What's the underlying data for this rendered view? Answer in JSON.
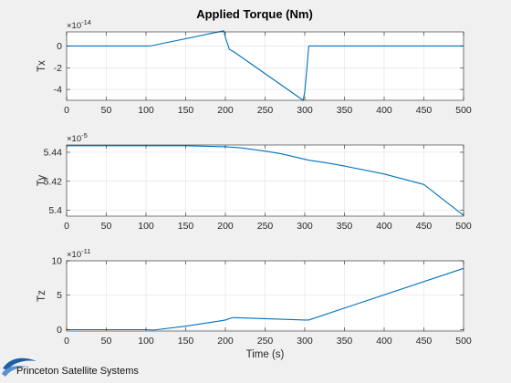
{
  "figure": {
    "title": "Applied Torque (Nm)",
    "footer_logo_text": "Princeton Satellite Systems"
  },
  "colors": {
    "line": "#0072bd",
    "axes": "#262626",
    "grid": "#e1e1e1",
    "plot_background": "#ffffff",
    "figure_background": "#f0f0f0",
    "logo_swoosh": "#1f5fa6"
  },
  "chart_data": [
    {
      "type": "line",
      "ylabel": "Tx",
      "xlabel": "",
      "exponent_base": "×10",
      "exponent_power": "-14",
      "xlim": [
        0,
        500
      ],
      "ylim": [
        -5,
        1.3
      ],
      "xticks": [
        0,
        50,
        100,
        150,
        200,
        250,
        300,
        350,
        400,
        450,
        500
      ],
      "yticks": [
        -4,
        -2,
        0
      ],
      "grid": true,
      "series": [
        {
          "x": [
            0,
            105,
            198,
            200,
            205,
            212,
            298,
            300,
            303,
            305,
            310,
            500
          ],
          "y": [
            0,
            0,
            1.4,
            0.8,
            -0.3,
            -0.6,
            -5.0,
            -4.2,
            -1.8,
            0,
            0,
            0
          ]
        }
      ]
    },
    {
      "type": "line",
      "ylabel": "Ty",
      "xlabel": "",
      "exponent_base": "×10",
      "exponent_power": "-5",
      "xlim": [
        0,
        500
      ],
      "ylim": [
        5.396,
        5.445
      ],
      "xticks": [
        0,
        50,
        100,
        150,
        200,
        250,
        300,
        350,
        400,
        450,
        500
      ],
      "yticks": [
        5.4,
        5.42,
        5.44
      ],
      "grid": true,
      "series": [
        {
          "x": [
            0,
            50,
            100,
            150,
            200,
            220,
            250,
            270,
            290,
            305,
            330,
            350,
            400,
            450,
            500
          ],
          "y": [
            5.4445,
            5.4445,
            5.4445,
            5.4445,
            5.4438,
            5.443,
            5.4408,
            5.439,
            5.4365,
            5.4345,
            5.4325,
            5.4305,
            5.425,
            5.4178,
            5.3965
          ]
        }
      ]
    },
    {
      "type": "line",
      "ylabel": "Tz",
      "xlabel": "Time (s)",
      "exponent_base": "×10",
      "exponent_power": "-11",
      "xlim": [
        0,
        500
      ],
      "ylim": [
        -0.2,
        10
      ],
      "xticks": [
        0,
        50,
        100,
        150,
        200,
        250,
        300,
        350,
        400,
        450,
        500
      ],
      "yticks": [
        0,
        5,
        10
      ],
      "grid": true,
      "series": [
        {
          "x": [
            0,
            100,
            110,
            150,
            195,
            200,
            205,
            210,
            250,
            300,
            305,
            500
          ],
          "y": [
            0,
            0,
            -0.05,
            0.5,
            1.3,
            1.4,
            1.6,
            1.75,
            1.6,
            1.4,
            1.4,
            8.9
          ]
        }
      ]
    }
  ]
}
